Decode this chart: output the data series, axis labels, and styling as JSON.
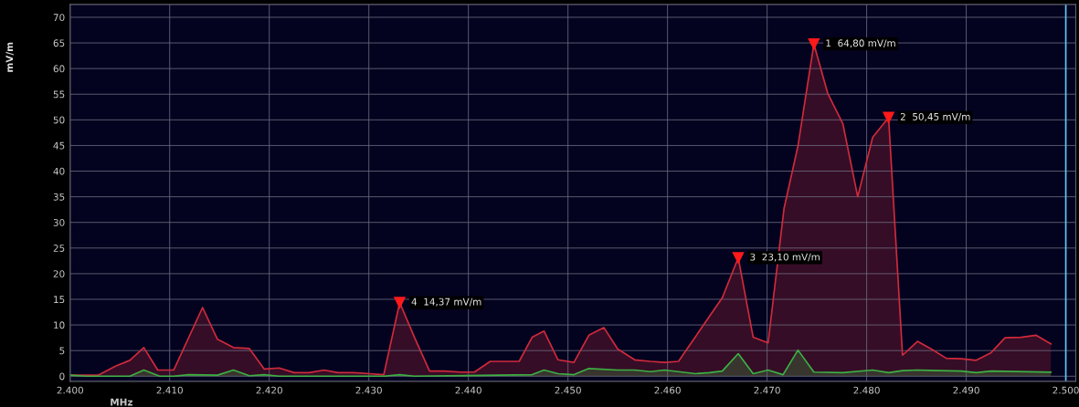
{
  "chart_data": {
    "type": "area",
    "xlabel": "MHz",
    "ylabel": "mV/m",
    "xlim": [
      2400,
      2501
    ],
    "ylim": [
      -1,
      72.5
    ],
    "xticks": [
      {
        "value": 2400,
        "label": "2.400"
      },
      {
        "value": 2410,
        "label": "2.410"
      },
      {
        "value": 2420,
        "label": "2.420"
      },
      {
        "value": 2430,
        "label": "2.430"
      },
      {
        "value": 2440,
        "label": "2.440"
      },
      {
        "value": 2450,
        "label": "2.450"
      },
      {
        "value": 2460,
        "label": "2.460"
      },
      {
        "value": 2470,
        "label": "2.470"
      },
      {
        "value": 2480,
        "label": "2.480"
      },
      {
        "value": 2490,
        "label": "2.490"
      },
      {
        "value": 2500,
        "label": "2.500"
      }
    ],
    "yticks": [
      0,
      5,
      10,
      15,
      20,
      25,
      30,
      35,
      40,
      45,
      50,
      55,
      60,
      65,
      70
    ],
    "grid": true,
    "legend": false,
    "marker": "none",
    "line_style": "solid",
    "series": [
      {
        "color": "#d02a3c",
        "x": [
          2400,
          2402.8,
          2404.6,
          2406,
          2407.4,
          2408.8,
          2410.4,
          2413.3,
          2414.8,
          2416.4,
          2418,
          2419.5,
          2421,
          2422.5,
          2424,
          2425.5,
          2426.9,
          2428.5,
          2430.1,
          2431.5,
          2433.1,
          2434.6,
          2436.1,
          2437.6,
          2439.2,
          2440.6,
          2442.2,
          2443.7,
          2445.1,
          2446.4,
          2447.6,
          2449,
          2450.6,
          2452.1,
          2453.6,
          2455,
          2456.7,
          2458.3,
          2459.7,
          2461.1,
          2465.5,
          2467.1,
          2468.6,
          2470.1,
          2471.7,
          2473.1,
          2474.7,
          2476.1,
          2477.6,
          2479.1,
          2480.6,
          2482.2,
          2483.6,
          2485.1,
          2486.5,
          2488,
          2489.5,
          2491,
          2492.5,
          2493.9,
          2495.5,
          2497,
          2498.5
        ],
        "values": [
          0.2,
          0.2,
          2.0,
          3.1,
          5.6,
          1.2,
          1.2,
          13.4,
          7.2,
          5.6,
          5.4,
          1.4,
          1.6,
          0.7,
          0.7,
          1.2,
          0.7,
          0.7,
          0.5,
          0.3,
          14.37,
          7.5,
          1.0,
          1.0,
          0.8,
          0.8,
          2.9,
          2.9,
          2.9,
          7.6,
          8.8,
          3.2,
          2.7,
          8.0,
          9.5,
          5.3,
          3.2,
          2.9,
          2.7,
          2.9,
          15.3,
          23.1,
          7.6,
          6.5,
          32.7,
          44.9,
          64.8,
          55.1,
          49.3,
          35.0,
          46.6,
          50.45,
          4.1,
          6.8,
          5.3,
          3.5,
          3.4,
          3.1,
          4.6,
          7.5,
          7.6,
          8.0,
          6.3
        ]
      },
      {
        "color": "#3cb043",
        "x": [
          2400,
          2401.6,
          2406,
          2407.4,
          2409,
          2410.4,
          2411.9,
          2414.8,
          2416.4,
          2418,
          2419.5,
          2421,
          2431.5,
          2433.1,
          2434.6,
          2446.4,
          2447.6,
          2449,
          2450.6,
          2452.1,
          2455,
          2456.7,
          2458.3,
          2459.7,
          2461.1,
          2462.8,
          2464.2,
          2465.5,
          2467.1,
          2468.6,
          2470.1,
          2471.6,
          2473.1,
          2474.7,
          2477.6,
          2480.6,
          2482.2,
          2483.6,
          2485.1,
          2489.5,
          2491,
          2492.5,
          2498.5
        ],
        "values": [
          0.2,
          0,
          0,
          1.2,
          0,
          0,
          0.3,
          0.2,
          1.2,
          0.1,
          0.3,
          0,
          0,
          0.3,
          0,
          0.3,
          1.2,
          0.5,
          0.3,
          1.5,
          1.2,
          1.2,
          0.9,
          1.2,
          0.9,
          0.5,
          0.7,
          1.0,
          4.4,
          0.5,
          1.2,
          0.3,
          5.1,
          0.8,
          0.7,
          1.2,
          0.7,
          1.1,
          1.2,
          1.0,
          0.7,
          1.0,
          0.8
        ]
      }
    ],
    "ref_lines": [
      {
        "axis": "x",
        "value": 2500,
        "color": "#5ec8f0"
      }
    ],
    "annotations": [
      {
        "text": "1  64,80 mV/m",
        "x": 2474.7,
        "y": 64.8
      },
      {
        "text": "2  50,45 mV/m",
        "x": 2482.2,
        "y": 50.45
      },
      {
        "text": "3  23,10 mV/m",
        "x": 2467.1,
        "y": 23.1
      },
      {
        "text": "4  14,37 mV/m",
        "x": 2433.1,
        "y": 14.37
      }
    ]
  }
}
